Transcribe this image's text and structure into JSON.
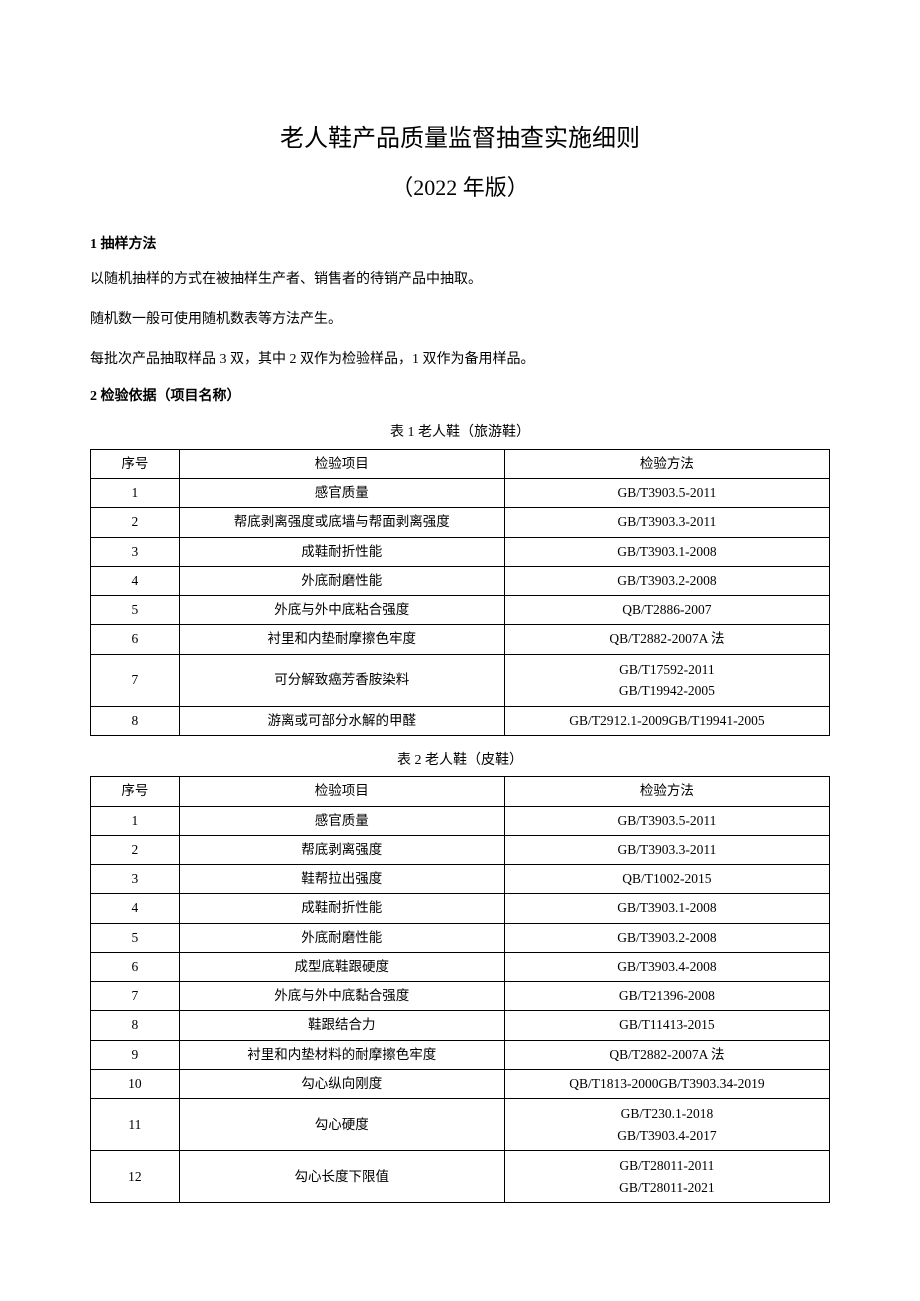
{
  "title": "老人鞋产品质量监督抽查实施细则",
  "subtitle": "（2022 年版）",
  "section1": {
    "heading": "1 抽样方法",
    "p1": "以随机抽样的方式在被抽样生产者、销售者的待销产品中抽取。",
    "p2": "随机数一般可使用随机数表等方法产生。",
    "p3": "每批次产品抽取样品 3 双，其中 2 双作为检验样品，1 双作为备用样品。"
  },
  "section2": {
    "heading": "2 检验依据（项目名称）"
  },
  "table1": {
    "caption": "表 1 老人鞋（旅游鞋）",
    "headers": {
      "seq": "序号",
      "item": "检验项目",
      "method": "检验方法"
    },
    "rows": [
      {
        "seq": "1",
        "item": "感官质量",
        "method": "GB/T3903.5-2011"
      },
      {
        "seq": "2",
        "item": "帮底剥离强度或底墙与帮面剥离强度",
        "method": "GB/T3903.3-2011"
      },
      {
        "seq": "3",
        "item": "成鞋耐折性能",
        "method": "GB/T3903.1-2008"
      },
      {
        "seq": "4",
        "item": "外底耐磨性能",
        "method": "GB/T3903.2-2008"
      },
      {
        "seq": "5",
        "item": "外底与外中底粘合强度",
        "method": "QB/T2886-2007"
      },
      {
        "seq": "6",
        "item": "衬里和内垫耐摩擦色牢度",
        "method": "QB/T2882-2007A 法"
      },
      {
        "seq": "7",
        "item": "可分解致癌芳香胺染料",
        "method": "GB/T17592-2011\nGB/T19942-2005"
      },
      {
        "seq": "8",
        "item": "游离或可部分水解的甲醛",
        "method": "GB/T2912.1-2009GB/T19941-2005"
      }
    ]
  },
  "table2": {
    "caption": "表 2 老人鞋（皮鞋）",
    "headers": {
      "seq": "序号",
      "item": "检验项目",
      "method": "检验方法"
    },
    "rows": [
      {
        "seq": "1",
        "item": "感官质量",
        "method": "GB/T3903.5-2011"
      },
      {
        "seq": "2",
        "item": "帮底剥离强度",
        "method": "GB/T3903.3-2011"
      },
      {
        "seq": "3",
        "item": "鞋帮拉出强度",
        "method": "QB/T1002-2015"
      },
      {
        "seq": "4",
        "item": "成鞋耐折性能",
        "method": "GB/T3903.1-2008"
      },
      {
        "seq": "5",
        "item": "外底耐磨性能",
        "method": "GB/T3903.2-2008"
      },
      {
        "seq": "6",
        "item": "成型底鞋跟硬度",
        "method": "GB/T3903.4-2008"
      },
      {
        "seq": "7",
        "item": "外底与外中底黏合强度",
        "method": "GB/T21396-2008"
      },
      {
        "seq": "8",
        "item": "鞋跟结合力",
        "method": "GB/T11413-2015"
      },
      {
        "seq": "9",
        "item": "衬里和内垫材料的耐摩擦色牢度",
        "method": "QB/T2882-2007A 法"
      },
      {
        "seq": "10",
        "item": "勾心纵向刚度",
        "method": "QB/T1813-2000GB/T3903.34-2019"
      },
      {
        "seq": "11",
        "item": "勾心硬度",
        "method": "GB/T230.1-2018\nGB/T3903.4-2017"
      },
      {
        "seq": "12",
        "item": "勾心长度下限值",
        "method": "GB/T28011-2011\nGB/T28011-2021"
      }
    ]
  }
}
